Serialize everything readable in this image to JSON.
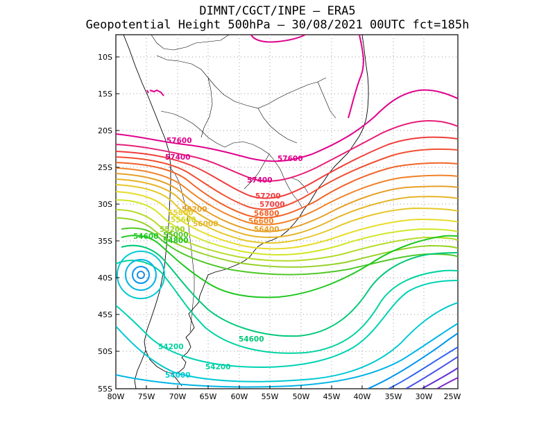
{
  "title": {
    "line1": "DIMNT/CGCT/INPE –  ERA5",
    "line2": "Geopotential Height 500hPa –  30/08/2021 00UTC fct=185h"
  },
  "axes": {
    "lat_labels": [
      "10S",
      "15S",
      "20S",
      "25S",
      "30S",
      "35S",
      "40S",
      "45S",
      "50S",
      "55S"
    ],
    "lon_labels": [
      "80W",
      "75W",
      "70W",
      "65W",
      "60W",
      "55W",
      "50W",
      "45W",
      "40W",
      "35W",
      "30W",
      "25W"
    ]
  },
  "contour_labels": [
    {
      "text": "57600",
      "color": "#e0008c"
    },
    {
      "text": "57600",
      "color": "#e0008c"
    },
    {
      "text": "57400",
      "color": "#e0008c"
    },
    {
      "text": "57400",
      "color": "#e0008c"
    },
    {
      "text": "57200",
      "color": "#f03c3c"
    },
    {
      "text": "57000",
      "color": "#f03c3c"
    },
    {
      "text": "56800",
      "color": "#f06428"
    },
    {
      "text": "56600",
      "color": "#f08228"
    },
    {
      "text": "56400",
      "color": "#e6a028"
    },
    {
      "text": "56200",
      "color": "#e6a028"
    },
    {
      "text": "56000",
      "color": "#e6b428"
    },
    {
      "text": "55800",
      "color": "#e6d228"
    },
    {
      "text": "55600",
      "color": "#d2dc28"
    },
    {
      "text": "55200",
      "color": "#96d228"
    },
    {
      "text": "55000",
      "color": "#50c828"
    },
    {
      "text": "54800",
      "color": "#1ec81e"
    },
    {
      "text": "54600",
      "color": "#1ec81e"
    },
    {
      "text": "54600",
      "color": "#00c878"
    },
    {
      "text": "54200",
      "color": "#00d2a0"
    },
    {
      "text": "54200",
      "color": "#00d2a0"
    },
    {
      "text": "54000",
      "color": "#00c8d2"
    }
  ],
  "colors": {
    "c57600": "#e0008c",
    "c57400": "#e61e78",
    "c57200": "#f03c3c",
    "c57000": "#f05032",
    "c56800": "#f06428",
    "c56600": "#f08228",
    "c56400": "#e6a028",
    "c56200": "#e6b428",
    "c56000": "#e6c828",
    "c55800": "#e6dc28",
    "c55600": "#d2e628",
    "c55400": "#b4dc28",
    "c55200": "#96d228",
    "c55000": "#50c828",
    "c54800": "#1ec81e",
    "c54600": "#00c878",
    "c54400": "#00d2a0",
    "c54200": "#00d2b4",
    "c54000": "#00c8d2",
    "c53800": "#00b4e6",
    "c53600": "#0096f0",
    "low": "#1e8cdc",
    "blue1": "#3264f0",
    "blue2": "#4650e6",
    "purple1": "#6432d2",
    "purple2": "#8228c8"
  }
}
